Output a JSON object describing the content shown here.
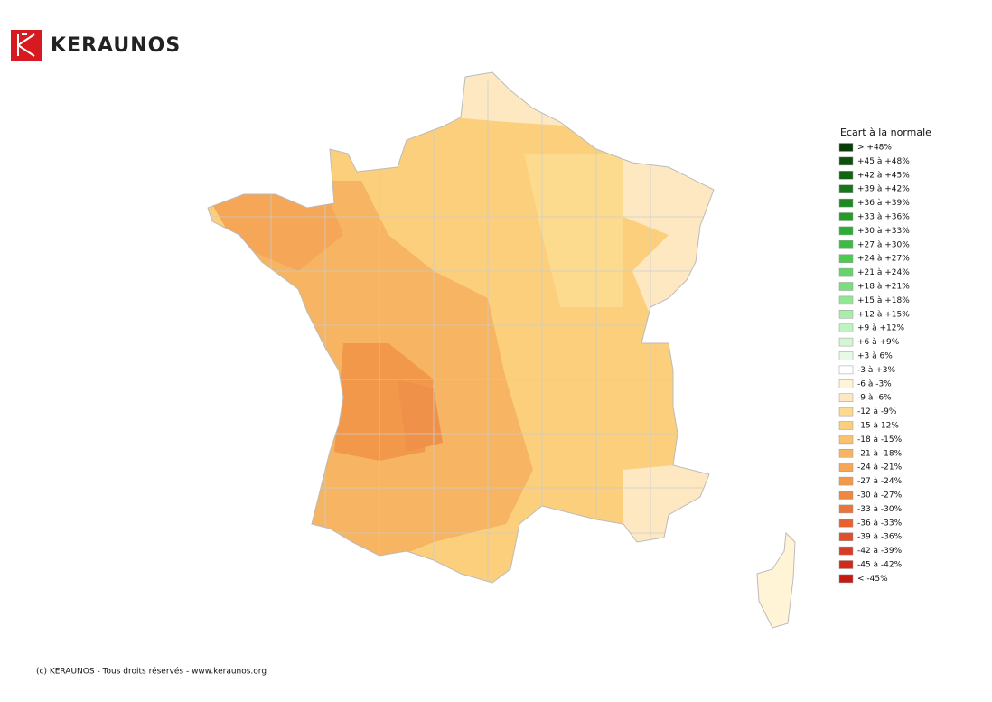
{
  "logo": {
    "text": "KERAUNOS"
  },
  "legend": {
    "title": "Ecart à la normale",
    "items": [
      {
        "label": "> +48%",
        "color": "#0b3d0b"
      },
      {
        "label": "+45 à +48%",
        "color": "#0f4f10"
      },
      {
        "label": "+42 à +45%",
        "color": "#136314"
      },
      {
        "label": "+39 à +42%",
        "color": "#17761a"
      },
      {
        "label": "+36 à +39%",
        "color": "#1c8a20"
      },
      {
        "label": "+33 à +36%",
        "color": "#229d27"
      },
      {
        "label": "+30 à +33%",
        "color": "#2aaf30"
      },
      {
        "label": "+27 à +30%",
        "color": "#38bf3e"
      },
      {
        "label": "+24 à +27%",
        "color": "#4ccb52"
      },
      {
        "label": "+21 à +24%",
        "color": "#62d567"
      },
      {
        "label": "+18 à +21%",
        "color": "#79de7d"
      },
      {
        "label": "+15 à +18%",
        "color": "#91e693"
      },
      {
        "label": "+12 à +15%",
        "color": "#a8eda9"
      },
      {
        "label": "+9 à +12%",
        "color": "#bff3bf"
      },
      {
        "label": "+6 à +9%",
        "color": "#d3f7d3"
      },
      {
        "label": "+3 à 6%",
        "color": "#e6fbe6"
      },
      {
        "label": "-3 à +3%",
        "color": "#ffffff"
      },
      {
        "label": "-6 à -3%",
        "color": "#fff5d6"
      },
      {
        "label": "-9 à -6%",
        "color": "#fde8c2"
      },
      {
        "label": "-12 à -9%",
        "color": "#fcdb8e"
      },
      {
        "label": "-15 à 12%",
        "color": "#fbcf7c"
      },
      {
        "label": "-18 à -15%",
        "color": "#f9c26d"
      },
      {
        "label": "-21 à -18%",
        "color": "#f7b462"
      },
      {
        "label": "-24 à -21%",
        "color": "#f5a656"
      },
      {
        "label": "-27 à -24%",
        "color": "#f2984b"
      },
      {
        "label": "-30 à -27%",
        "color": "#ee8742"
      },
      {
        "label": "-33 à -30%",
        "color": "#ea7439"
      },
      {
        "label": "-36 à -33%",
        "color": "#e56231"
      },
      {
        "label": "-39 à -36%",
        "color": "#df4f29"
      },
      {
        "label": "-42 à -39%",
        "color": "#d83c22"
      },
      {
        "label": "-45 à -42%",
        "color": "#d02a1b"
      },
      {
        "label": "< -45%",
        "color": "#c41a14"
      }
    ]
  },
  "footer": "(c) KERAUNOS - Tous droits réservés - www.keraunos.org"
}
